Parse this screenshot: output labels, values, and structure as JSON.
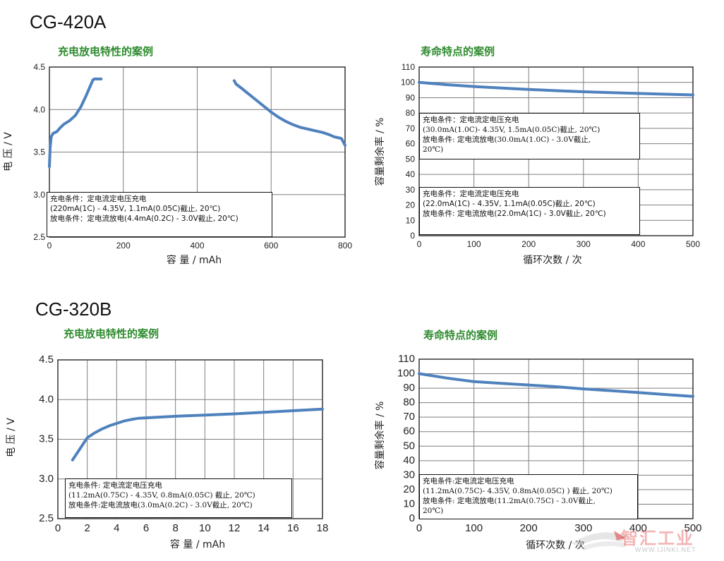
{
  "sections": [
    {
      "model": "CG-420A"
    },
    {
      "model": "CG-320B"
    }
  ],
  "chart_data": [
    {
      "id": "a-charge-discharge",
      "type": "line",
      "title": "充电放电特性的案例",
      "xlabel": "容 量 / mAh",
      "ylabel": "电 压 / V",
      "xlim": [
        0,
        800
      ],
      "ylim": [
        2.5,
        4.5
      ],
      "xticks": [
        "0",
        "200",
        "400",
        "600",
        "800"
      ],
      "yticks": [
        "2.5",
        "3.0",
        "3.5",
        "4.0",
        "4.5"
      ],
      "grid": true,
      "series": [
        {
          "name": "",
          "role": "charge",
          "x": [
            0,
            2,
            5,
            10,
            20,
            30,
            40,
            55,
            70,
            85,
            100,
            110,
            118,
            122,
            130,
            140
          ],
          "y": [
            3.33,
            3.55,
            3.68,
            3.72,
            3.74,
            3.79,
            3.83,
            3.87,
            3.93,
            4.03,
            4.17,
            4.27,
            4.35,
            4.36,
            4.36,
            4.36
          ]
        },
        {
          "name": "",
          "role": "discharge",
          "x": [
            500,
            505,
            520,
            540,
            560,
            580,
            600,
            620,
            640,
            660,
            680,
            700,
            720,
            740,
            760,
            770,
            780,
            790,
            795,
            800
          ],
          "y": [
            4.34,
            4.3,
            4.25,
            4.18,
            4.11,
            4.04,
            3.97,
            3.91,
            3.86,
            3.82,
            3.79,
            3.77,
            3.75,
            3.73,
            3.7,
            3.68,
            3.67,
            3.66,
            3.62,
            3.58
          ]
        }
      ],
      "notes": [
        {
          "lines": [
            "充电条件：定电流定电压充电",
            "(220mA(1C) - 4.35V, 1.1mA(0.05C)截止, 20℃)",
            "放电条件：定电流放电(4.4mA(0.2C) - 3.0V截止, 20℃)"
          ]
        }
      ]
    },
    {
      "id": "a-cycle-life",
      "type": "line",
      "title": "寿命特点的案例",
      "xlabel": "循环次数 / 次",
      "ylabel": "容量剩余率 / %",
      "xlim": [
        0,
        500
      ],
      "ylim": [
        0,
        110
      ],
      "xticks": [
        "0",
        "100",
        "200",
        "300",
        "400",
        "500"
      ],
      "yticks": [
        "0",
        "10",
        "20",
        "30",
        "40",
        "50",
        "60",
        "70",
        "80",
        "90",
        "100",
        "110"
      ],
      "grid": true,
      "series": [
        {
          "name": "",
          "x": [
            0,
            50,
            100,
            150,
            200,
            250,
            300,
            350,
            400,
            450,
            500
          ],
          "y": [
            100,
            98.5,
            97.3,
            96.3,
            95.4,
            94.6,
            93.9,
            93.3,
            92.8,
            92.3,
            91.8
          ]
        }
      ],
      "notes": [
        {
          "lines": [
            "充电条件：定电流定电压充电",
            "(30.0mA(1.0C)-  4.35V, 1.5mA(0.05C)截止, 20℃)",
            "放电条件: 定电流放电(30.0mA(1.0C) - 3.0V截止,",
            "20℃)"
          ]
        },
        {
          "lines": [
            "充电条件：定电流定电压充电",
            "(22.0mA(1C) - 4.35V, 1.1mA(0.05C)截止, 20℃)",
            "放电条件: 定电流放电(22.0mA(1C) - 3.0V截止, 20℃)"
          ]
        }
      ]
    },
    {
      "id": "b-charge-discharge",
      "type": "line",
      "title": "充电放电特性的案例",
      "xlabel": "容 量 / mAh",
      "ylabel": "电 压 / V",
      "xlim": [
        0,
        18
      ],
      "ylim": [
        2.5,
        4.5
      ],
      "xticks": [
        "0",
        "2",
        "4",
        "6",
        "8",
        "10",
        "12",
        "14",
        "16",
        "18"
      ],
      "yticks": [
        "2.5",
        "3.0",
        "3.5",
        "4.0",
        "4.5"
      ],
      "grid": true,
      "series": [
        {
          "name": "",
          "x": [
            1,
            1.5,
            2,
            2.5,
            3,
            3.5,
            4,
            4.5,
            5,
            5.5,
            6,
            7,
            8,
            10,
            12,
            14,
            16,
            18
          ],
          "y": [
            3.24,
            3.38,
            3.52,
            3.58,
            3.63,
            3.67,
            3.7,
            3.73,
            3.75,
            3.765,
            3.77,
            3.78,
            3.79,
            3.805,
            3.82,
            3.84,
            3.86,
            3.88
          ]
        }
      ],
      "notes": [
        {
          "lines": [
            "充电条件: 定电流定电压充电",
            "(11.2mA(0.75C) - 4.35V, 0.8mA(0.05C) 截止, 20℃)",
            "放电条件:定电流放电(3.0mA(0.2C) - 3.0V截止, 20℃)"
          ]
        }
      ]
    },
    {
      "id": "b-cycle-life",
      "type": "line",
      "title": "寿命特点的案例",
      "xlabel": "循环次数 / 次",
      "ylabel": "容量剩余率 / %",
      "xlim": [
        0,
        500
      ],
      "ylim": [
        0,
        110
      ],
      "xticks": [
        "0",
        "100",
        "200",
        "300",
        "400",
        "500"
      ],
      "yticks": [
        "0",
        "10",
        "20",
        "30",
        "40",
        "50",
        "60",
        "70",
        "80",
        "90",
        "100",
        "110"
      ],
      "grid": true,
      "series": [
        {
          "name": "",
          "x": [
            0,
            50,
            100,
            150,
            200,
            250,
            300,
            350,
            400,
            450,
            500
          ],
          "y": [
            100,
            97,
            94.5,
            93.3,
            92.2,
            91,
            89.5,
            88.3,
            87,
            85.6,
            84.3
          ]
        }
      ],
      "notes": [
        {
          "lines": [
            "充电条件:定电流定电压充电",
            "(11.2mA(0.75C)-  4.35V, 0.8mA(0.05C) ) 截止, 20℃)",
            "放电条件: 定电流放电(11.2mA(0.75C) - 3.0V截止,",
            "20℃)"
          ]
        }
      ]
    }
  ],
  "watermark": {
    "text": "智汇工业",
    "url": "WWW.IJINKI.NET",
    "accent": "#dd2a2a"
  },
  "colors": {
    "line": "#4f81bd",
    "grid": "#7f7f7f",
    "title": "#2e8b2e"
  }
}
